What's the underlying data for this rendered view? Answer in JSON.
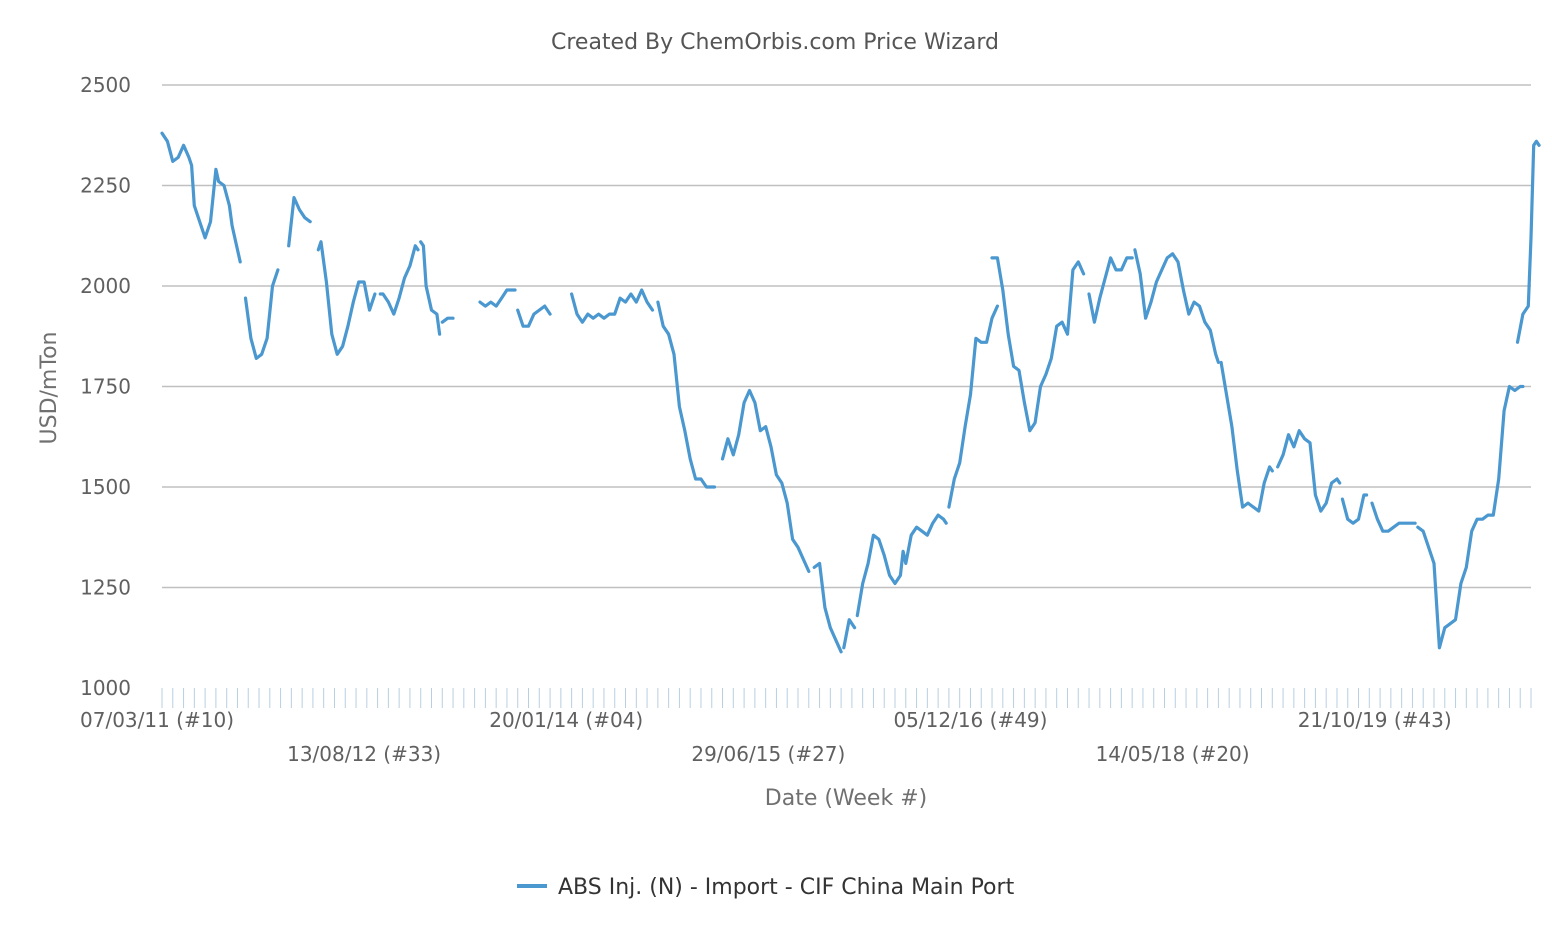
{
  "chart_data": {
    "type": "line",
    "title": "Created By ChemOrbis.com Price Wizard",
    "xlabel": "Date (Week #)",
    "ylabel": "USD/mTon",
    "ylim": [
      1000,
      2500
    ],
    "yticks": [
      "1000",
      "1250",
      "1500",
      "1750",
      "2000",
      "2250",
      "2500"
    ],
    "xticks": [
      {
        "label": "07/03/11 (#10)",
        "week_index": 0,
        "row": 1
      },
      {
        "label": "13/08/12 (#33)",
        "week_index": 75,
        "row": 2
      },
      {
        "label": "20/01/14 (#04)",
        "week_index": 150,
        "row": 1
      },
      {
        "label": "29/06/15 (#27)",
        "week_index": 225,
        "row": 2
      },
      {
        "label": "05/12/16 (#49)",
        "week_index": 300,
        "row": 1
      },
      {
        "label": "14/05/18 (#20)",
        "week_index": 375,
        "row": 2
      },
      {
        "label": "21/10/19 (#43)",
        "week_index": 450,
        "row": 1
      }
    ],
    "x_range_weeks": [
      0,
      508
    ],
    "grid": true,
    "legend_position": "bottom-center",
    "line_color": "#4a98cf",
    "series": [
      {
        "name": "ABS Inj. (N) - Import - CIF China Main Port",
        "segments": [
          [
            [
              0,
              2380
            ],
            [
              2,
              2360
            ],
            [
              4,
              2310
            ],
            [
              6,
              2320
            ],
            [
              8,
              2350
            ],
            [
              10,
              2320
            ],
            [
              11,
              2300
            ],
            [
              12,
              2200
            ],
            [
              14,
              2160
            ],
            [
              16,
              2120
            ],
            [
              18,
              2160
            ],
            [
              20,
              2290
            ],
            [
              21,
              2260
            ],
            [
              23,
              2250
            ],
            [
              25,
              2200
            ],
            [
              26,
              2150
            ],
            [
              29,
              2060
            ]
          ],
          [
            [
              31,
              1970
            ],
            [
              33,
              1870
            ],
            [
              35,
              1820
            ],
            [
              37,
              1830
            ],
            [
              39,
              1870
            ],
            [
              41,
              2000
            ],
            [
              43,
              2040
            ]
          ],
          [
            [
              47,
              2100
            ],
            [
              49,
              2220
            ],
            [
              51,
              2190
            ],
            [
              53,
              2170
            ],
            [
              55,
              2160
            ]
          ],
          [
            [
              58,
              2090
            ],
            [
              59,
              2110
            ],
            [
              61,
              2010
            ],
            [
              63,
              1880
            ],
            [
              65,
              1830
            ],
            [
              67,
              1850
            ],
            [
              69,
              1900
            ],
            [
              71,
              1960
            ],
            [
              73,
              2010
            ],
            [
              75,
              2010
            ],
            [
              77,
              1940
            ],
            [
              79,
              1980
            ]
          ],
          [
            [
              81,
              1980
            ],
            [
              82,
              1980
            ],
            [
              84,
              1960
            ],
            [
              86,
              1930
            ],
            [
              88,
              1970
            ],
            [
              90,
              2020
            ],
            [
              92,
              2050
            ],
            [
              94,
              2100
            ],
            [
              95,
              2090
            ]
          ],
          [
            [
              96,
              2110
            ],
            [
              97,
              2100
            ],
            [
              98,
              2000
            ],
            [
              100,
              1940
            ],
            [
              102,
              1930
            ],
            [
              103,
              1880
            ]
          ],
          [
            [
              104,
              1910
            ],
            [
              106,
              1920
            ],
            [
              108,
              1920
            ]
          ],
          [
            [
              118,
              1960
            ],
            [
              120,
              1950
            ],
            [
              122,
              1960
            ],
            [
              124,
              1950
            ],
            [
              126,
              1970
            ],
            [
              128,
              1990
            ],
            [
              131,
              1990
            ]
          ],
          [
            [
              132,
              1940
            ],
            [
              134,
              1900
            ],
            [
              136,
              1900
            ],
            [
              138,
              1930
            ],
            [
              140,
              1940
            ],
            [
              142,
              1950
            ],
            [
              144,
              1930
            ]
          ],
          [
            [
              152,
              1980
            ],
            [
              154,
              1930
            ],
            [
              156,
              1910
            ],
            [
              158,
              1930
            ],
            [
              160,
              1920
            ],
            [
              162,
              1930
            ],
            [
              164,
              1920
            ],
            [
              166,
              1930
            ],
            [
              168,
              1930
            ],
            [
              170,
              1970
            ],
            [
              172,
              1960
            ],
            [
              174,
              1980
            ],
            [
              176,
              1960
            ],
            [
              178,
              1990
            ],
            [
              180,
              1960
            ],
            [
              182,
              1940
            ]
          ],
          [
            [
              184,
              1960
            ],
            [
              186,
              1900
            ],
            [
              188,
              1880
            ],
            [
              190,
              1830
            ],
            [
              192,
              1700
            ],
            [
              194,
              1640
            ],
            [
              196,
              1570
            ],
            [
              198,
              1520
            ],
            [
              200,
              1520
            ],
            [
              202,
              1500
            ],
            [
              205,
              1500
            ]
          ],
          [
            [
              208,
              1570
            ],
            [
              210,
              1620
            ],
            [
              212,
              1580
            ],
            [
              214,
              1630
            ],
            [
              216,
              1710
            ],
            [
              218,
              1740
            ],
            [
              220,
              1710
            ],
            [
              222,
              1640
            ],
            [
              224,
              1650
            ],
            [
              226,
              1600
            ],
            [
              228,
              1530
            ],
            [
              230,
              1510
            ],
            [
              232,
              1460
            ],
            [
              234,
              1370
            ],
            [
              236,
              1350
            ],
            [
              238,
              1320
            ],
            [
              240,
              1290
            ]
          ],
          [
            [
              242,
              1300
            ],
            [
              244,
              1310
            ],
            [
              246,
              1200
            ],
            [
              248,
              1150
            ],
            [
              250,
              1120
            ],
            [
              252,
              1090
            ]
          ],
          [
            [
              253,
              1100
            ],
            [
              255,
              1170
            ],
            [
              257,
              1150
            ]
          ],
          [
            [
              258,
              1180
            ],
            [
              260,
              1260
            ],
            [
              262,
              1310
            ],
            [
              264,
              1380
            ],
            [
              266,
              1370
            ],
            [
              268,
              1330
            ],
            [
              270,
              1280
            ],
            [
              272,
              1260
            ],
            [
              274,
              1280
            ],
            [
              275,
              1340
            ],
            [
              276,
              1310
            ],
            [
              278,
              1380
            ],
            [
              280,
              1400
            ],
            [
              282,
              1390
            ],
            [
              284,
              1380
            ],
            [
              286,
              1410
            ],
            [
              288,
              1430
            ],
            [
              290,
              1420
            ],
            [
              291,
              1410
            ]
          ],
          [
            [
              292,
              1450
            ],
            [
              294,
              1520
            ],
            [
              296,
              1560
            ],
            [
              298,
              1650
            ],
            [
              300,
              1730
            ],
            [
              302,
              1870
            ],
            [
              304,
              1860
            ],
            [
              306,
              1860
            ],
            [
              308,
              1920
            ],
            [
              310,
              1950
            ]
          ],
          [
            [
              308,
              2070
            ],
            [
              310,
              2070
            ],
            [
              312,
              1990
            ],
            [
              314,
              1880
            ],
            [
              316,
              1800
            ],
            [
              318,
              1790
            ],
            [
              320,
              1710
            ],
            [
              322,
              1640
            ],
            [
              324,
              1660
            ],
            [
              326,
              1750
            ],
            [
              328,
              1780
            ],
            [
              330,
              1820
            ],
            [
              332,
              1900
            ],
            [
              334,
              1910
            ],
            [
              336,
              1880
            ],
            [
              338,
              2040
            ],
            [
              340,
              2060
            ],
            [
              342,
              2030
            ]
          ],
          [
            [
              344,
              1980
            ],
            [
              346,
              1910
            ],
            [
              348,
              1970
            ],
            [
              350,
              2020
            ],
            [
              352,
              2070
            ],
            [
              354,
              2040
            ],
            [
              356,
              2040
            ],
            [
              358,
              2070
            ],
            [
              360,
              2070
            ]
          ],
          [
            [
              361,
              2090
            ],
            [
              363,
              2030
            ],
            [
              365,
              1920
            ],
            [
              367,
              1960
            ],
            [
              369,
              2010
            ],
            [
              371,
              2040
            ],
            [
              373,
              2070
            ],
            [
              375,
              2080
            ],
            [
              377,
              2060
            ],
            [
              379,
              1990
            ],
            [
              381,
              1930
            ],
            [
              383,
              1960
            ],
            [
              385,
              1950
            ],
            [
              387,
              1910
            ],
            [
              389,
              1890
            ],
            [
              391,
              1830
            ],
            [
              392,
              1810
            ]
          ],
          [
            [
              393,
              1810
            ],
            [
              395,
              1730
            ],
            [
              397,
              1650
            ],
            [
              399,
              1540
            ],
            [
              401,
              1450
            ],
            [
              403,
              1460
            ],
            [
              405,
              1450
            ],
            [
              407,
              1440
            ],
            [
              409,
              1510
            ],
            [
              411,
              1550
            ],
            [
              412,
              1540
            ]
          ],
          [
            [
              414,
              1550
            ],
            [
              416,
              1580
            ],
            [
              418,
              1630
            ],
            [
              420,
              1600
            ],
            [
              422,
              1640
            ],
            [
              424,
              1620
            ],
            [
              426,
              1610
            ],
            [
              428,
              1480
            ],
            [
              430,
              1440
            ],
            [
              432,
              1460
            ],
            [
              434,
              1510
            ],
            [
              436,
              1520
            ],
            [
              437,
              1510
            ]
          ],
          [
            [
              438,
              1470
            ],
            [
              440,
              1420
            ],
            [
              442,
              1410
            ],
            [
              444,
              1420
            ],
            [
              446,
              1480
            ],
            [
              447,
              1480
            ]
          ],
          [
            [
              449,
              1460
            ],
            [
              451,
              1420
            ],
            [
              453,
              1390
            ],
            [
              455,
              1390
            ],
            [
              457,
              1400
            ],
            [
              459,
              1410
            ],
            [
              461,
              1410
            ],
            [
              463,
              1410
            ],
            [
              465,
              1410
            ]
          ],
          [
            [
              466,
              1400
            ],
            [
              468,
              1390
            ],
            [
              470,
              1350
            ],
            [
              472,
              1310
            ],
            [
              474,
              1100
            ],
            [
              476,
              1150
            ],
            [
              478,
              1160
            ],
            [
              480,
              1170
            ],
            [
              482,
              1260
            ],
            [
              484,
              1300
            ],
            [
              486,
              1390
            ],
            [
              488,
              1420
            ],
            [
              490,
              1420
            ],
            [
              492,
              1430
            ],
            [
              494,
              1430
            ],
            [
              496,
              1520
            ],
            [
              498,
              1690
            ],
            [
              500,
              1750
            ],
            [
              502,
              1740
            ],
            [
              504,
              1750
            ],
            [
              505,
              1750
            ]
          ],
          [
            [
              503,
              1860
            ],
            [
              505,
              1930
            ],
            [
              507,
              1950
            ],
            [
              508,
              2120
            ],
            [
              509,
              2350
            ],
            [
              510,
              2360
            ],
            [
              511,
              2350
            ]
          ]
        ]
      }
    ]
  }
}
